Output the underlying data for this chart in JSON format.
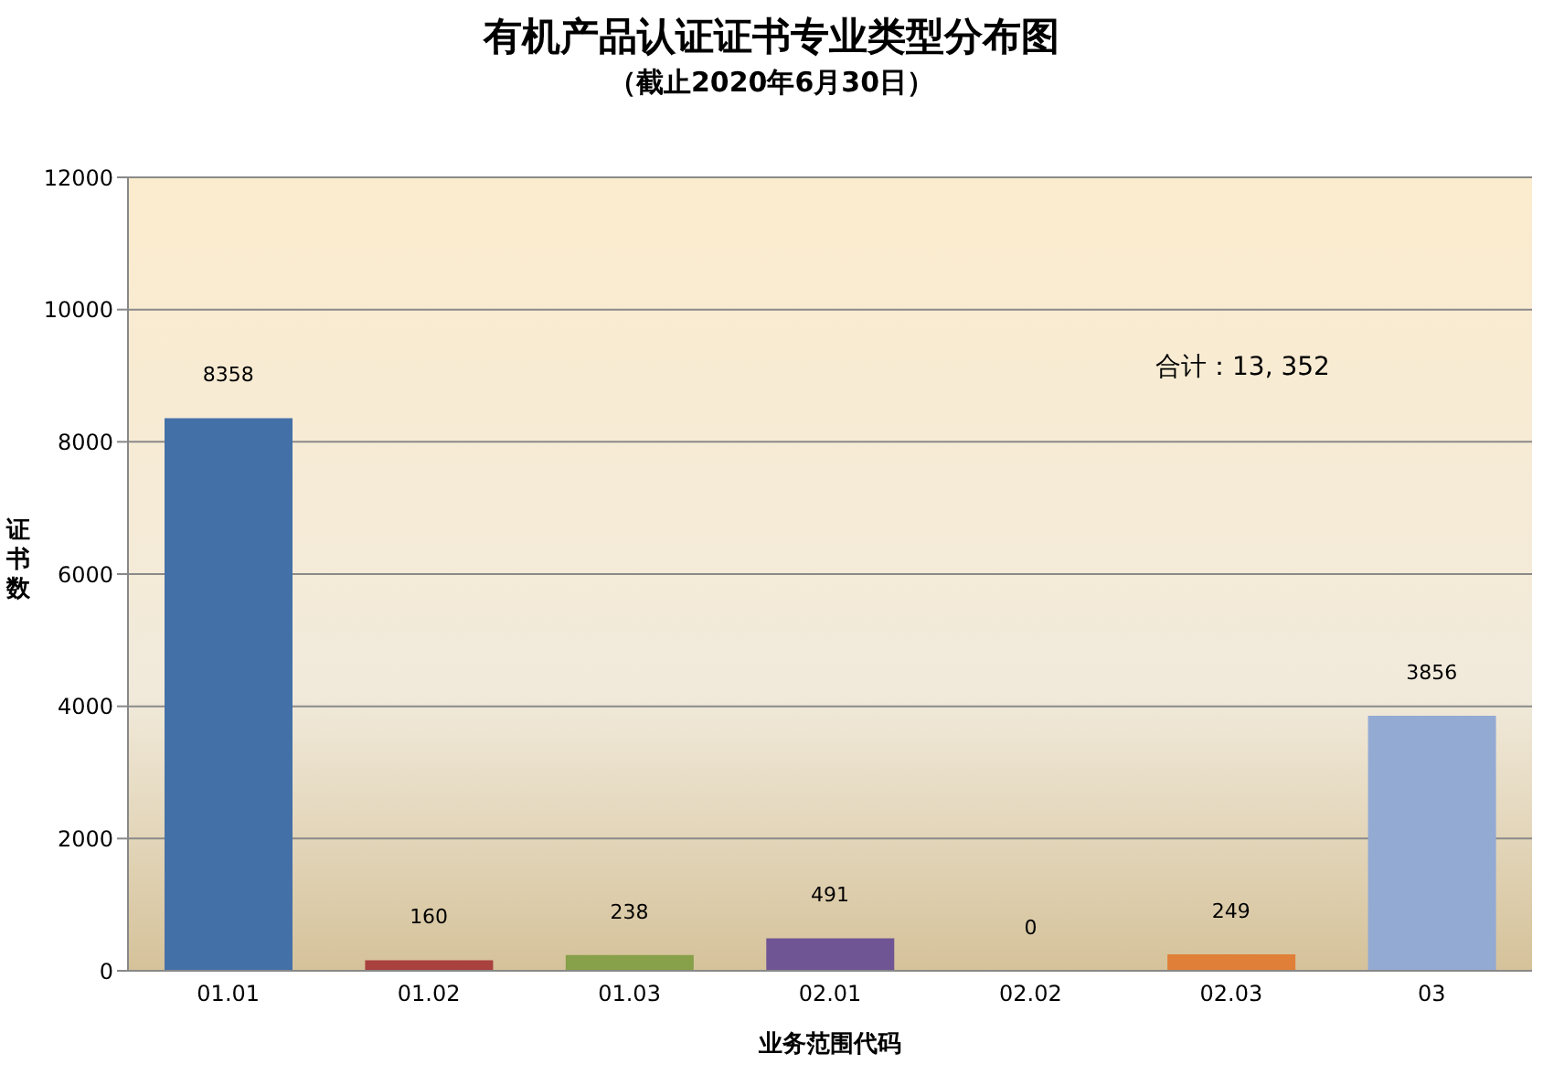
{
  "chart_data": {
    "type": "bar",
    "title": "有机产品认证证书专业类型分布图",
    "subtitle": "（截止2020年6月30日）",
    "xlabel": "业务范围代码",
    "ylabel": "证书数",
    "categories": [
      "01.01",
      "01.02",
      "01.03",
      "02.01",
      "02.02",
      "02.03",
      "03"
    ],
    "values": [
      8358,
      160,
      238,
      491,
      0,
      249,
      3856
    ],
    "colors": [
      "#4470a8",
      "#a9413e",
      "#87a04a",
      "#6f5593",
      "#3fa0bf",
      "#e07f37",
      "#93aad3"
    ],
    "ylim": [
      0,
      12000
    ],
    "yticks": [
      0,
      2000,
      4000,
      6000,
      8000,
      10000,
      12000
    ],
    "grid": "y",
    "data_labels": true,
    "annotations": [
      "合计：13, 352"
    ]
  }
}
